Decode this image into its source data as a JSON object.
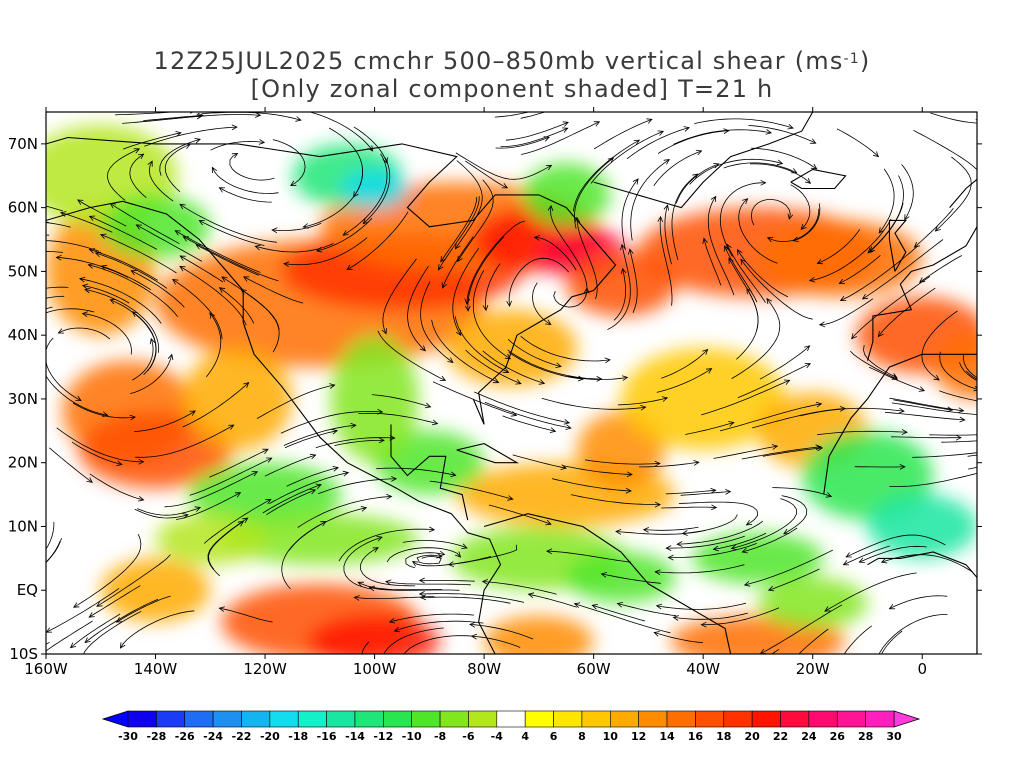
{
  "title": {
    "line1_prefix": "12Z25JUL2025 cmchr 500–850mb vertical shear (ms",
    "line1_sup": "-1",
    "line1_suffix": ")",
    "line2": "[Only zonal component shaded] T=21 h"
  },
  "map": {
    "projection": "lat-lon",
    "lon_range": [
      -160,
      10
    ],
    "lat_range": [
      -10,
      75
    ],
    "lon_tick_labels": [
      "160W",
      "140W",
      "120W",
      "100W",
      "80W",
      "60W",
      "40W",
      "20W",
      "0"
    ],
    "lat_tick_labels": [
      "70N",
      "60N",
      "50N",
      "40N",
      "30N",
      "20N",
      "10N",
      "EQ",
      "10S"
    ],
    "overlay": "streamlines of 500-850mb shear vector",
    "shading": "zonal shear component (ms-1)"
  },
  "colorbar": {
    "labels": [
      "-30",
      "-28",
      "-26",
      "-24",
      "-22",
      "-20",
      "-18",
      "-16",
      "-14",
      "-12",
      "-10",
      "-8",
      "-6",
      "-4",
      "4",
      "6",
      "8",
      "10",
      "12",
      "14",
      "16",
      "18",
      "20",
      "22",
      "24",
      "26",
      "28",
      "30"
    ],
    "colors": [
      "#0f00ee",
      "#1a3cf5",
      "#1e6ef5",
      "#1e90f0",
      "#14b4f0",
      "#14dcf0",
      "#14f0c8",
      "#19e6a0",
      "#1ee678",
      "#28e650",
      "#50e628",
      "#82e61e",
      "#b4e61e",
      "#ffffff",
      "#ffff00",
      "#ffe600",
      "#ffc800",
      "#ffaa00",
      "#ff8c00",
      "#ff6e00",
      "#ff5000",
      "#ff3200",
      "#ff1400",
      "#ff0a3c",
      "#ff0a6e",
      "#ff1496",
      "#ff1ebe"
    ],
    "under_color": "#0000ff",
    "over_color": "#ff3cdc"
  }
}
